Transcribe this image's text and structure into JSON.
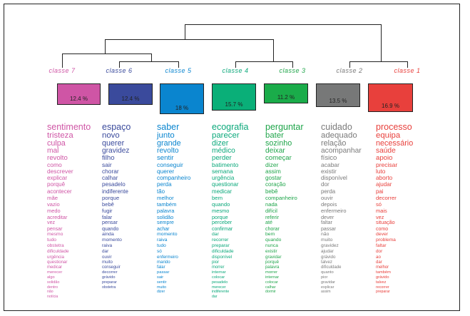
{
  "diagram": {
    "type": "dendrogram",
    "description": "Hierarchical classification (CHD) of lexical classes",
    "classes": [
      {
        "id": "7",
        "label": "classe  7",
        "percent": "12.4 %",
        "color": "#cf55a5",
        "words": [
          "sentimento",
          "tristeza",
          "culpa",
          "mal",
          "revolto",
          "como",
          "descrever",
          "explicar",
          "porquê",
          "acontecer",
          "mãe",
          "vazio",
          "medo",
          "acreditar",
          "vez",
          "pensar",
          "mesmo",
          "tudo",
          "obstetra",
          "dificuldade",
          "urgência",
          "questionar",
          "medicar",
          "merecer",
          "algo",
          "solidão",
          "dentro",
          "não",
          "notícia"
        ]
      },
      {
        "id": "6",
        "label": "classe  6",
        "percent": "12.4 %",
        "color": "#3a4a9c",
        "words": [
          "espaço",
          "novo",
          "querer",
          "gravidez",
          "filho",
          "sair",
          "chorar",
          "calhar",
          "pesadelo",
          "indiferente",
          "porque",
          "bebê",
          "fugir",
          "falar",
          "pensar",
          "quando",
          "ainda",
          "momento",
          "raiva",
          "dar",
          "ouvir",
          "muito",
          "conseguir",
          "decorrer",
          "grávido",
          "preparar",
          "obstetra"
        ]
      },
      {
        "id": "5",
        "label": "classe  5",
        "percent": "18 %",
        "color": "#0a85cf",
        "words": [
          "saber",
          "junto",
          "grande",
          "revolto",
          "sentir",
          "conseguir",
          "querer",
          "companheiro",
          "perda",
          "tão",
          "melhor",
          "também",
          "palavra",
          "solidão",
          "sempre",
          "achar",
          "momento",
          "raiva",
          "tudo",
          "só",
          "enfermeiro",
          "marido",
          "falar",
          "passar",
          "sair",
          "sentir",
          "muito",
          "dizer"
        ]
      },
      {
        "id": "4",
        "label": "classe  4",
        "percent": "15.7 %",
        "color": "#0aa87a",
        "words": [
          "ecografia",
          "parecer",
          "dizer",
          "médico",
          "perder",
          "batimento",
          "semana",
          "urgência",
          "questionar",
          "medicar",
          "bem",
          "quando",
          "mesmo",
          "porque",
          "perceber",
          "confirmar",
          "dar",
          "recorrer",
          "preparar",
          "dificuldade",
          "disponível",
          "pior",
          "morrer",
          "internar",
          "colocar",
          "pesadelo",
          "merecer",
          "indiferente",
          "dar"
        ]
      },
      {
        "id": "3",
        "label": "classe  3",
        "percent": "11.2 %",
        "color": "#1fa54a",
        "words": [
          "perguntar",
          "bater",
          "sozinho",
          "deixar",
          "começar",
          "dizer",
          "assim",
          "gostar",
          "coração",
          "bebê",
          "companheiro",
          "nada",
          "difícil",
          "referir",
          "até",
          "chorar",
          "bem",
          "quando",
          "nunca",
          "existir",
          "gravidar",
          "porquê",
          "palavra",
          "morrer",
          "internar",
          "colocar",
          "calhar",
          "dormir"
        ]
      },
      {
        "id": "2",
        "label": "classe  2",
        "percent": "13.5 %",
        "color": "#7a7a7a",
        "words": [
          "cuidado",
          "adequado",
          "relação",
          "acompanhar",
          "físico",
          "acabar",
          "existir",
          "disponível",
          "dor",
          "perda",
          "ouvir",
          "depois",
          "enfermeiro",
          "dever",
          "faltar",
          "passar",
          "não",
          "muito",
          "gravidez",
          "ajudar",
          "grávido",
          "talvez",
          "dificuldade",
          "quanto",
          "pior",
          "gravidar",
          "explicar",
          "assim"
        ]
      },
      {
        "id": "1",
        "label": "classe  1",
        "percent": "16.9 %",
        "color": "#e8403c",
        "words": [
          "processo",
          "equipa",
          "necessário",
          "saúde",
          "apoio",
          "precisar",
          "luto",
          "aborto",
          "ajudar",
          "pai",
          "decorrer",
          "só",
          "mais",
          "vez",
          "situação",
          "como",
          "dever",
          "problema",
          "faltar",
          "dor",
          "ao",
          "dar",
          "melhor",
          "também",
          "grávido",
          "talvez",
          "recorrer",
          "preparar"
        ]
      }
    ]
  }
}
